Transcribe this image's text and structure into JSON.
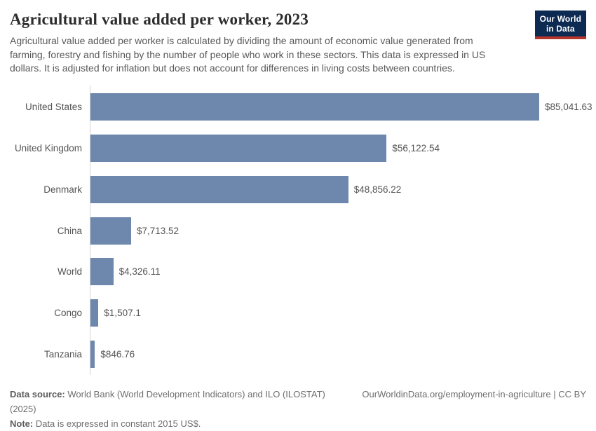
{
  "header": {
    "title": "Agricultural value added per worker, 2023",
    "subtitle": "Agricultural value added per worker is calculated by dividing the amount of economic value generated from farming, forestry and fishing by the number of people who work in these sectors. This data is expressed in US dollars. It is adjusted for inflation but does not account for differences in living costs between countries.",
    "logo": {
      "line1": "Our World",
      "line2": "in Data"
    }
  },
  "chart_data": {
    "type": "bar",
    "orientation": "horizontal",
    "title": "Agricultural value added per worker, 2023",
    "categories": [
      "United States",
      "United Kingdom",
      "Denmark",
      "China",
      "World",
      "Congo",
      "Tanzania"
    ],
    "values": [
      85041.63,
      56122.54,
      48856.22,
      7713.52,
      4326.11,
      1507.1,
      846.76
    ],
    "value_labels": [
      "$85,041.63",
      "$56,122.54",
      "$48,856.22",
      "$7,713.52",
      "$4,326.11",
      "$1,507.1",
      "$846.76"
    ],
    "xlabel": "",
    "ylabel": "",
    "xlim": [
      0,
      85041.63
    ],
    "grid": false,
    "legend": false,
    "bar_color": "#6e87ad",
    "axis_color": "#d6d6d6"
  },
  "footer": {
    "source_label": "Data source:",
    "source_text": " World Bank (World Development Indicators) and ILO (ILOSTAT) (2025)",
    "link_text": "OurWorldinData.org/employment-in-agriculture | CC BY",
    "note_label": "Note:",
    "note_text": " Data is expressed in constant 2015 US$."
  },
  "colors": {
    "bar": "#6e87ad",
    "logo_navy": "#0d2a52",
    "logo_red": "#b5342b",
    "title_text": "#2d2d2d",
    "body_text": "#565656"
  }
}
